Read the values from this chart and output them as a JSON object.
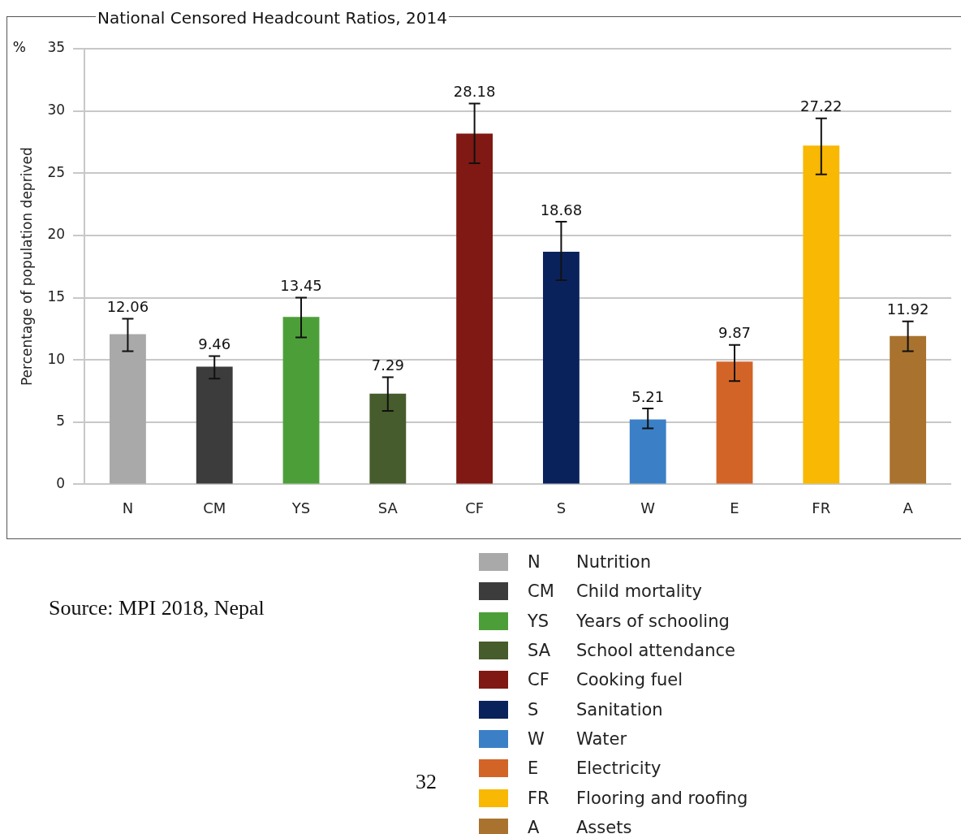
{
  "chart_data": {
    "type": "bar",
    "title": "National Censored Headcount Ratios, 2014",
    "ylabel": "Percentage of population deprived",
    "categories": [
      "N",
      "CM",
      "YS",
      "SA",
      "CF",
      "S",
      "W",
      "E",
      "FR",
      "A"
    ],
    "series": [
      {
        "name": "N\tNutrition",
        "color": "#a9a9a9",
        "values": [
          12.06,
          null,
          null,
          null,
          null,
          null,
          null,
          null,
          null,
          null
        ],
        "errors": [
          [
            10.7,
            13.3
          ],
          null,
          null,
          null,
          null,
          null,
          null,
          null,
          null,
          null
        ]
      },
      {
        "name": "CM\tChild mortality",
        "color": "#3c3c3c",
        "values": [
          null,
          9.46,
          null,
          null,
          null,
          null,
          null,
          null,
          null,
          null
        ],
        "errors": [
          null,
          [
            8.5,
            10.3
          ],
          null,
          null,
          null,
          null,
          null,
          null,
          null,
          null
        ]
      },
      {
        "name": "YS\tYears of schooling",
        "color": "#4c9f38",
        "values": [
          null,
          null,
          13.45,
          null,
          null,
          null,
          null,
          null,
          null,
          null
        ],
        "errors": [
          null,
          null,
          [
            11.8,
            15.0
          ],
          null,
          null,
          null,
          null,
          null,
          null,
          null
        ]
      },
      {
        "name": "SA\tSchool attendance",
        "color": "#465c2c",
        "values": [
          null,
          null,
          null,
          7.29,
          null,
          null,
          null,
          null,
          null,
          null
        ],
        "errors": [
          null,
          null,
          null,
          [
            5.9,
            8.6
          ],
          null,
          null,
          null,
          null,
          null,
          null
        ]
      },
      {
        "name": "CF\tCooking fuel",
        "color": "#801913",
        "values": [
          null,
          null,
          null,
          null,
          28.18,
          null,
          null,
          null,
          null,
          null
        ],
        "errors": [
          null,
          null,
          null,
          null,
          [
            25.8,
            30.6
          ],
          null,
          null,
          null,
          null,
          null
        ]
      },
      {
        "name": "S\tSanitation",
        "color": "#0a225c",
        "values": [
          null,
          null,
          null,
          null,
          null,
          18.68,
          null,
          null,
          null,
          null
        ],
        "errors": [
          null,
          null,
          null,
          null,
          null,
          [
            16.4,
            21.1
          ],
          null,
          null,
          null,
          null
        ]
      },
      {
        "name": "W\tWater",
        "color": "#3b80c6",
        "values": [
          null,
          null,
          null,
          null,
          null,
          null,
          5.21,
          null,
          null,
          null
        ],
        "errors": [
          null,
          null,
          null,
          null,
          null,
          null,
          [
            4.5,
            6.1
          ],
          null,
          null,
          null
        ]
      },
      {
        "name": "E\tElectricity",
        "color": "#d36427",
        "values": [
          null,
          null,
          null,
          null,
          null,
          null,
          null,
          9.87,
          null,
          null
        ],
        "errors": [
          null,
          null,
          null,
          null,
          null,
          null,
          null,
          [
            8.3,
            11.2
          ],
          null,
          null
        ]
      },
      {
        "name": "FR\tFlooring and roofing",
        "color": "#f8b803",
        "values": [
          null,
          null,
          null,
          null,
          null,
          null,
          null,
          null,
          27.22,
          null
        ],
        "errors": [
          null,
          null,
          null,
          null,
          null,
          null,
          null,
          null,
          [
            24.9,
            29.4
          ],
          null
        ]
      },
      {
        "name": "A\tAssets",
        "color": "#a9732f",
        "values": [
          null,
          null,
          null,
          null,
          null,
          null,
          null,
          null,
          null,
          11.92
        ],
        "errors": [
          null,
          null,
          null,
          null,
          null,
          null,
          null,
          null,
          null,
          [
            10.7,
            13.1
          ]
        ]
      }
    ],
    "ylim": [
      0,
      35
    ],
    "yticks": [
      0,
      5,
      10,
      15,
      20,
      25,
      30,
      35
    ],
    "grid": "y",
    "data_labels": true,
    "legend": "bottom",
    "annotations": [
      "%",
      "Source: MPI 2018, Nepal",
      "32"
    ]
  }
}
